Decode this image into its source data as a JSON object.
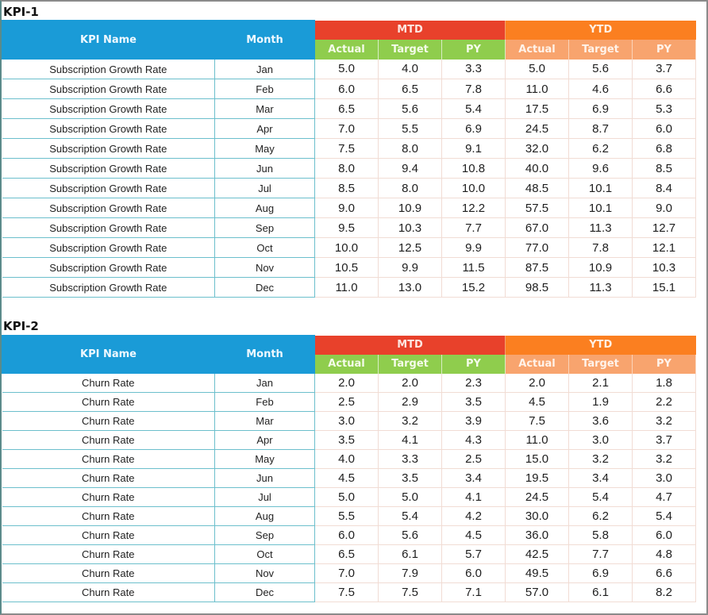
{
  "tables": [
    {
      "title": "KPI-1",
      "headers": {
        "kpi_name": "KPI Name",
        "month": "Month",
        "mtd": "MTD",
        "ytd": "YTD",
        "sub": [
          "Actual",
          "Target",
          "PY",
          "Actual",
          "Target",
          "PY"
        ]
      },
      "rows": [
        {
          "name": "Subscription Growth Rate",
          "month": "Jan",
          "v": [
            "5.0",
            "4.0",
            "3.3",
            "5.0",
            "5.6",
            "3.7"
          ]
        },
        {
          "name": "Subscription Growth Rate",
          "month": "Feb",
          "v": [
            "6.0",
            "6.5",
            "7.8",
            "11.0",
            "4.6",
            "6.6"
          ]
        },
        {
          "name": "Subscription Growth Rate",
          "month": "Mar",
          "v": [
            "6.5",
            "5.6",
            "5.4",
            "17.5",
            "6.9",
            "5.3"
          ]
        },
        {
          "name": "Subscription Growth Rate",
          "month": "Apr",
          "v": [
            "7.0",
            "5.5",
            "6.9",
            "24.5",
            "8.7",
            "6.0"
          ]
        },
        {
          "name": "Subscription Growth Rate",
          "month": "May",
          "v": [
            "7.5",
            "8.0",
            "9.1",
            "32.0",
            "6.2",
            "6.8"
          ]
        },
        {
          "name": "Subscription Growth Rate",
          "month": "Jun",
          "v": [
            "8.0",
            "9.4",
            "10.8",
            "40.0",
            "9.6",
            "8.5"
          ]
        },
        {
          "name": "Subscription Growth Rate",
          "month": "Jul",
          "v": [
            "8.5",
            "8.0",
            "10.0",
            "48.5",
            "10.1",
            "8.4"
          ]
        },
        {
          "name": "Subscription Growth Rate",
          "month": "Aug",
          "v": [
            "9.0",
            "10.9",
            "12.2",
            "57.5",
            "10.1",
            "9.0"
          ]
        },
        {
          "name": "Subscription Growth Rate",
          "month": "Sep",
          "v": [
            "9.5",
            "10.3",
            "7.7",
            "67.0",
            "11.3",
            "12.7"
          ]
        },
        {
          "name": "Subscription Growth Rate",
          "month": "Oct",
          "v": [
            "10.0",
            "12.5",
            "9.9",
            "77.0",
            "7.8",
            "12.1"
          ]
        },
        {
          "name": "Subscription Growth Rate",
          "month": "Nov",
          "v": [
            "10.5",
            "9.9",
            "11.5",
            "87.5",
            "10.9",
            "10.3"
          ]
        },
        {
          "name": "Subscription Growth Rate",
          "month": "Dec",
          "v": [
            "11.0",
            "13.0",
            "15.2",
            "98.5",
            "11.3",
            "15.1"
          ]
        }
      ]
    },
    {
      "title": "KPI-2",
      "headers": {
        "kpi_name": "KPI Name",
        "month": "Month",
        "mtd": "MTD",
        "ytd": "YTD",
        "sub": [
          "Actual",
          "Target",
          "PY",
          "Actual",
          "Target",
          "PY"
        ]
      },
      "rows": [
        {
          "name": "Churn Rate",
          "month": "Jan",
          "v": [
            "2.0",
            "2.0",
            "2.3",
            "2.0",
            "2.1",
            "1.8"
          ]
        },
        {
          "name": "Churn Rate",
          "month": "Feb",
          "v": [
            "2.5",
            "2.9",
            "3.5",
            "4.5",
            "1.9",
            "2.2"
          ]
        },
        {
          "name": "Churn Rate",
          "month": "Mar",
          "v": [
            "3.0",
            "3.2",
            "3.9",
            "7.5",
            "3.6",
            "3.2"
          ]
        },
        {
          "name": "Churn Rate",
          "month": "Apr",
          "v": [
            "3.5",
            "4.1",
            "4.3",
            "11.0",
            "3.0",
            "3.7"
          ]
        },
        {
          "name": "Churn Rate",
          "month": "May",
          "v": [
            "4.0",
            "3.3",
            "2.5",
            "15.0",
            "3.2",
            "3.2"
          ]
        },
        {
          "name": "Churn Rate",
          "month": "Jun",
          "v": [
            "4.5",
            "3.5",
            "3.4",
            "19.5",
            "3.4",
            "3.0"
          ]
        },
        {
          "name": "Churn Rate",
          "month": "Jul",
          "v": [
            "5.0",
            "5.0",
            "4.1",
            "24.5",
            "5.4",
            "4.7"
          ]
        },
        {
          "name": "Churn Rate",
          "month": "Aug",
          "v": [
            "5.5",
            "5.4",
            "4.2",
            "30.0",
            "6.2",
            "5.4"
          ]
        },
        {
          "name": "Churn Rate",
          "month": "Sep",
          "v": [
            "6.0",
            "5.6",
            "4.5",
            "36.0",
            "5.8",
            "6.0"
          ]
        },
        {
          "name": "Churn Rate",
          "month": "Oct",
          "v": [
            "6.5",
            "6.1",
            "5.7",
            "42.5",
            "7.7",
            "4.8"
          ]
        },
        {
          "name": "Churn Rate",
          "month": "Nov",
          "v": [
            "7.0",
            "7.9",
            "6.0",
            "49.5",
            "6.9",
            "6.6"
          ]
        },
        {
          "name": "Churn Rate",
          "month": "Dec",
          "v": [
            "7.5",
            "7.5",
            "7.1",
            "57.0",
            "6.1",
            "8.2"
          ]
        }
      ]
    }
  ],
  "colors": {
    "header_blue": "#1a9bd7",
    "mtd_red": "#e8412b",
    "ytd_orange": "#fb7f20",
    "mtd_sub_green": "#8fcd4d",
    "ytd_sub_peach": "#f8a46e",
    "name_grid": "#6cbfcc",
    "value_grid": "#f1dcd4"
  }
}
